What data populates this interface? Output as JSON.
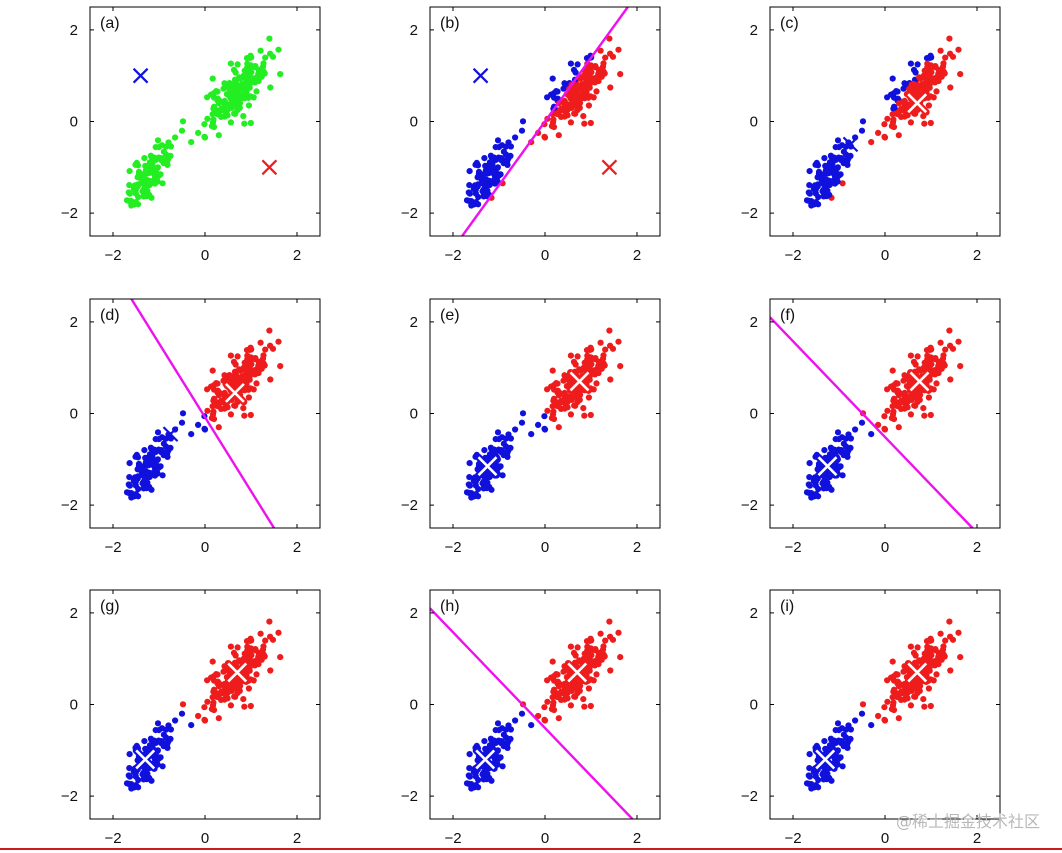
{
  "watermark": "@稀土掘金技术社区",
  "colors": {
    "green": "#22ee22",
    "blue": "#1111dd",
    "red": "#ee1c1c",
    "magenta": "#ee11ee",
    "axis": "#000000"
  },
  "chart_data": [
    {
      "label": "(a)",
      "type": "scatter",
      "xlim": [
        -2.5,
        2.5
      ],
      "ylim": [
        -2.5,
        2.5
      ],
      "xticks": [
        "−2",
        "0",
        "2"
      ],
      "yticks": [
        "−2",
        "0",
        "2"
      ],
      "points": "all-green",
      "centroids": [
        {
          "x": -1.4,
          "y": 1.0,
          "color": "blue",
          "style": "x"
        },
        {
          "x": 1.4,
          "y": -1.0,
          "color": "red",
          "style": "x"
        }
      ],
      "boundary": null
    },
    {
      "label": "(b)",
      "type": "scatter",
      "xlim": [
        -2.5,
        2.5
      ],
      "ylim": [
        -2.5,
        2.5
      ],
      "xticks": [
        "−2",
        "0",
        "2"
      ],
      "yticks": [
        "−2",
        "0",
        "2"
      ],
      "points": "split-b",
      "centroids": [
        {
          "x": -1.4,
          "y": 1.0,
          "color": "blue",
          "style": "x"
        },
        {
          "x": 1.4,
          "y": -1.0,
          "color": "red",
          "style": "x"
        }
      ],
      "boundary": {
        "x1": -1.8,
        "y1": -2.5,
        "x2": 1.8,
        "y2": 2.5
      }
    },
    {
      "label": "(c)",
      "type": "scatter",
      "xlim": [
        -2.5,
        2.5
      ],
      "ylim": [
        -2.5,
        2.5
      ],
      "xticks": [
        "−2",
        "0",
        "2"
      ],
      "yticks": [
        "−2",
        "0",
        "2"
      ],
      "points": "split-b",
      "centroids": [
        {
          "x": -0.75,
          "y": -0.5,
          "color": "blue",
          "style": "x"
        },
        {
          "x": 0.7,
          "y": 0.4,
          "color": "red",
          "style": "big"
        }
      ],
      "boundary": null
    },
    {
      "label": "(d)",
      "type": "scatter",
      "xlim": [
        -2.5,
        2.5
      ],
      "ylim": [
        -2.5,
        2.5
      ],
      "xticks": [
        "−2",
        "0",
        "2"
      ],
      "yticks": [
        "−2",
        "0",
        "2"
      ],
      "points": "split-d",
      "centroids": [
        {
          "x": -0.75,
          "y": -0.45,
          "color": "blue",
          "style": "x"
        },
        {
          "x": 0.65,
          "y": 0.45,
          "color": "red",
          "style": "big"
        }
      ],
      "boundary": {
        "x1": -1.6,
        "y1": 2.5,
        "x2": 1.5,
        "y2": -2.5
      }
    },
    {
      "label": "(e)",
      "type": "scatter",
      "xlim": [
        -2.5,
        2.5
      ],
      "ylim": [
        -2.5,
        2.5
      ],
      "xticks": [
        "−2",
        "0",
        "2"
      ],
      "yticks": [
        "−2",
        "0",
        "2"
      ],
      "points": "split-d",
      "centroids": [
        {
          "x": -1.25,
          "y": -1.15,
          "color": "blue",
          "style": "big"
        },
        {
          "x": 0.75,
          "y": 0.7,
          "color": "red",
          "style": "big"
        }
      ],
      "boundary": null
    },
    {
      "label": "(f)",
      "type": "scatter",
      "xlim": [
        -2.5,
        2.5
      ],
      "ylim": [
        -2.5,
        2.5
      ],
      "xticks": [
        "−2",
        "0",
        "2"
      ],
      "yticks": [
        "−2",
        "0",
        "2"
      ],
      "points": "split-f",
      "centroids": [
        {
          "x": -1.25,
          "y": -1.15,
          "color": "blue",
          "style": "big"
        },
        {
          "x": 0.75,
          "y": 0.7,
          "color": "red",
          "style": "big"
        }
      ],
      "boundary": {
        "x1": -2.5,
        "y1": 2.1,
        "x2": 1.9,
        "y2": -2.5
      }
    },
    {
      "label": "(g)",
      "type": "scatter",
      "xlim": [
        -2.5,
        2.5
      ],
      "ylim": [
        -2.5,
        2.5
      ],
      "xticks": [
        "−2",
        "0",
        "2"
      ],
      "yticks": [
        "−2",
        "0",
        "2"
      ],
      "points": "split-f",
      "centroids": [
        {
          "x": -1.3,
          "y": -1.2,
          "color": "blue",
          "style": "big"
        },
        {
          "x": 0.7,
          "y": 0.7,
          "color": "red",
          "style": "big"
        }
      ],
      "boundary": null
    },
    {
      "label": "(h)",
      "type": "scatter",
      "xlim": [
        -2.5,
        2.5
      ],
      "ylim": [
        -2.5,
        2.5
      ],
      "xticks": [
        "−2",
        "0",
        "2"
      ],
      "yticks": [
        "−2",
        "0",
        "2"
      ],
      "points": "split-f",
      "centroids": [
        {
          "x": -1.3,
          "y": -1.2,
          "color": "blue",
          "style": "big"
        },
        {
          "x": 0.7,
          "y": 0.7,
          "color": "red",
          "style": "big"
        }
      ],
      "boundary": {
        "x1": -2.5,
        "y1": 2.1,
        "x2": 1.9,
        "y2": -2.5
      }
    },
    {
      "label": "(i)",
      "type": "scatter",
      "xlim": [
        -2.5,
        2.5
      ],
      "ylim": [
        -2.5,
        2.5
      ],
      "xticks": [
        "−2",
        "0",
        "2"
      ],
      "yticks": [
        "−2",
        "0",
        "2"
      ],
      "points": "split-f",
      "centroids": [
        {
          "x": -1.3,
          "y": -1.2,
          "color": "blue",
          "style": "big"
        },
        {
          "x": 0.7,
          "y": 0.7,
          "color": "red",
          "style": "big"
        }
      ],
      "boundary": null
    }
  ]
}
